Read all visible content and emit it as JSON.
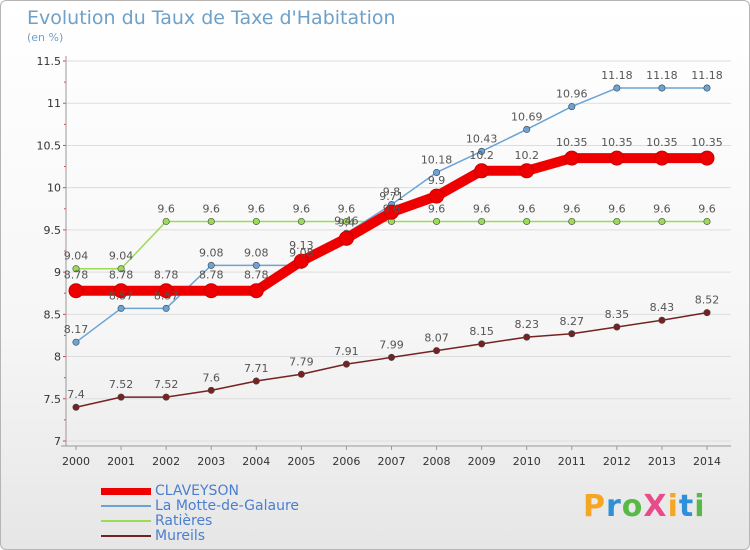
{
  "title": "Evolution du Taux de Taxe d'Habitation",
  "subtitle": "(en %)",
  "chart_data": {
    "type": "line",
    "x": [
      "2000",
      "2001",
      "2002",
      "2003",
      "2004",
      "2005",
      "2006",
      "2007",
      "2008",
      "2009",
      "2010",
      "2011",
      "2012",
      "2013",
      "2014"
    ],
    "ylim": [
      7,
      11.5
    ],
    "yticks": [
      "7",
      "7.5",
      "8",
      "8.5",
      "9",
      "9.5",
      "10",
      "10.5",
      "11",
      "11.5"
    ],
    "grid": "horizontal",
    "legend_position": "bottom-left",
    "series": [
      {
        "name": "CLAVEYSON",
        "color": "#ee0000",
        "values": [
          8.78,
          8.78,
          8.78,
          8.78,
          8.78,
          9.13,
          9.4,
          9.71,
          9.9,
          10.2,
          10.2,
          10.35,
          10.35,
          10.35,
          10.35
        ],
        "labels": [
          "8.78",
          "8.78",
          "8.78",
          "8.78",
          "8.78",
          "9.13",
          "9.4",
          "9.71",
          "9.9",
          "10.2",
          "10.2",
          "10.35",
          "10.35",
          "10.35",
          "10.35"
        ]
      },
      {
        "name": "La Motte-de-Galaure",
        "color": "#6aa3d5",
        "values": [
          8.17,
          8.57,
          8.57,
          9.08,
          9.08,
          9.08,
          9.46,
          9.8,
          10.18,
          10.43,
          10.69,
          10.96,
          11.18,
          11.18,
          11.18
        ],
        "labels": [
          "8.17",
          "8.57",
          "8.57",
          "9.08",
          "9.08",
          "9.08",
          "9.46",
          "9.8",
          "10.18",
          "10.43",
          "10.69",
          "10.96",
          "11.18",
          "11.18",
          "11.18"
        ]
      },
      {
        "name": "Ratières",
        "color": "#99dd55",
        "values": [
          9.04,
          9.04,
          9.6,
          9.6,
          9.6,
          9.6,
          9.6,
          9.6,
          9.6,
          9.6,
          9.6,
          9.6,
          9.6,
          9.6,
          9.6
        ],
        "labels": [
          "9.04",
          "9.04",
          "9.6",
          "9.6",
          "9.6",
          "9.6",
          "9.6",
          "9.6",
          "9.6",
          "9.6",
          "9.6",
          "9.6",
          "9.6",
          "9.6",
          "9.6"
        ]
      },
      {
        "name": "Mureils",
        "color": "#772222",
        "values": [
          7.4,
          7.52,
          7.52,
          7.6,
          7.71,
          7.79,
          7.91,
          7.99,
          8.07,
          8.15,
          8.23,
          8.27,
          8.35,
          8.43,
          8.52
        ],
        "labels": [
          "7.4",
          "7.52",
          "7.52",
          "7.6",
          "7.71",
          "7.79",
          "7.91",
          "7.99",
          "8.07",
          "8.15",
          "8.23",
          "8.27",
          "8.35",
          "8.43",
          "8.52"
        ]
      }
    ]
  },
  "legend": [
    {
      "label": "CLAVEYSON",
      "color": "#ee0000"
    },
    {
      "label": "La Motte-de-Galaure",
      "color": "#6aa3d5"
    },
    {
      "label": "Ratières",
      "color": "#99dd55"
    },
    {
      "label": "Mureils",
      "color": "#772222"
    }
  ],
  "logo": {
    "text": "ProXiti",
    "colors": [
      "#f5a623",
      "#2f8fd8",
      "#58b947",
      "#e94b8a",
      "#f5a623",
      "#2f8fd8",
      "#58b947"
    ]
  }
}
